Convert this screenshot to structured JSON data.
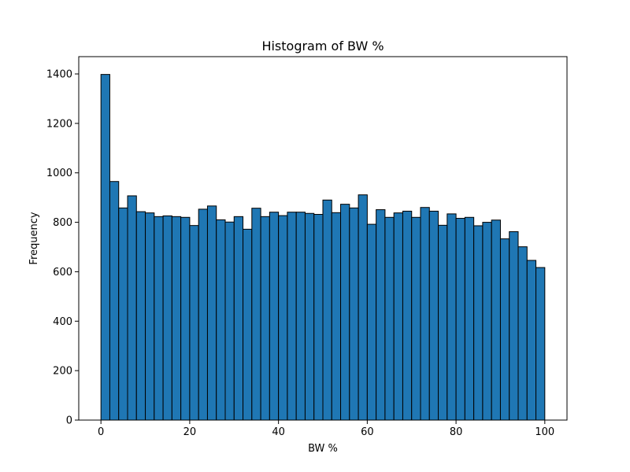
{
  "chart_data": {
    "type": "bar",
    "title": "Histogram of BW %",
    "xlabel": "BW %",
    "ylabel": "Frequency",
    "xlim": [
      -5,
      105
    ],
    "ylim": [
      0,
      1470
    ],
    "xticks": [
      0,
      20,
      40,
      60,
      80,
      100
    ],
    "yticks": [
      0,
      200,
      400,
      600,
      800,
      1000,
      1200,
      1400
    ],
    "grid": false,
    "bar_color": "#1f77b4",
    "edge_color": "#000000",
    "bin_start": 0,
    "bin_end": 100,
    "bin_width": 2,
    "values": [
      1398,
      965,
      858,
      907,
      843,
      838,
      823,
      826,
      823,
      820,
      787,
      853,
      866,
      810,
      801,
      823,
      772,
      857,
      823,
      841,
      827,
      841,
      841,
      836,
      832,
      890,
      839,
      873,
      858,
      911,
      792,
      851,
      820,
      838,
      845,
      820,
      860,
      845,
      788,
      834,
      816,
      820,
      786,
      800,
      809,
      733,
      762,
      701,
      646,
      617
    ]
  }
}
